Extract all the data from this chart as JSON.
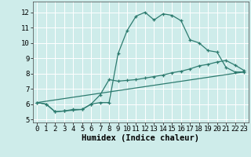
{
  "title": "",
  "xlabel": "Humidex (Indice chaleur)",
  "ylabel": "",
  "background_color": "#ceecea",
  "grid_color": "#ffffff",
  "line_color": "#2d7b6f",
  "xlim": [
    -0.5,
    23.5
  ],
  "ylim": [
    4.8,
    12.7
  ],
  "yticks": [
    5,
    6,
    7,
    8,
    9,
    10,
    11,
    12
  ],
  "xticks": [
    0,
    1,
    2,
    3,
    4,
    5,
    6,
    7,
    8,
    9,
    10,
    11,
    12,
    13,
    14,
    15,
    16,
    17,
    18,
    19,
    20,
    21,
    22,
    23
  ],
  "series1_x": [
    0,
    1,
    2,
    3,
    4,
    5,
    6,
    7,
    8,
    9,
    10,
    11,
    12,
    13,
    14,
    15,
    16,
    17,
    18,
    19,
    20,
    21,
    22,
    23
  ],
  "series1_y": [
    6.1,
    6.0,
    5.5,
    5.55,
    5.6,
    5.65,
    6.0,
    6.1,
    6.1,
    9.3,
    10.8,
    11.75,
    12.0,
    11.5,
    11.9,
    11.8,
    11.45,
    10.2,
    10.0,
    9.5,
    9.4,
    8.4,
    8.1,
    8.1
  ],
  "series2_x": [
    0,
    1,
    2,
    3,
    4,
    5,
    6,
    7,
    8,
    9,
    10,
    11,
    12,
    13,
    14,
    15,
    16,
    17,
    18,
    19,
    20,
    21,
    22,
    23
  ],
  "series2_y": [
    6.1,
    6.0,
    5.5,
    5.55,
    5.65,
    5.65,
    6.0,
    6.6,
    7.6,
    7.5,
    7.55,
    7.6,
    7.7,
    7.8,
    7.9,
    8.05,
    8.15,
    8.3,
    8.5,
    8.6,
    8.75,
    8.85,
    8.55,
    8.2
  ],
  "series3_x": [
    0,
    23
  ],
  "series3_y": [
    6.1,
    8.1
  ],
  "xlabel_fontsize": 7.5,
  "tick_fontsize": 6.5
}
